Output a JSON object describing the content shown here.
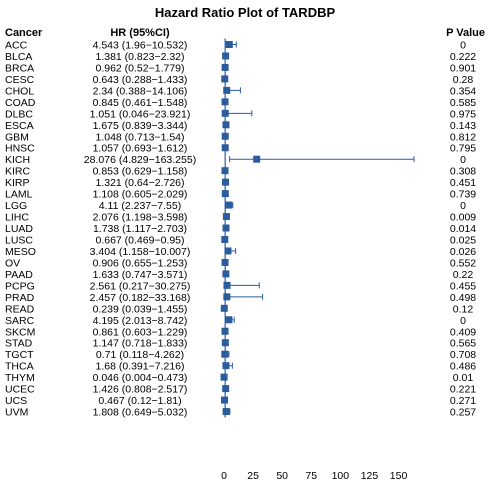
{
  "chart_data": {
    "type": "forest",
    "title": "Hazard Ratio Plot of TARDBP",
    "columns": {
      "cancer": "Cancer",
      "hr": "HR (95%CI)",
      "p": "P Value"
    },
    "colors": {
      "marker": "#2b5c9e",
      "line": "#2b5c9e",
      "reference": "#2b5c9e"
    },
    "x_ticks": [
      0,
      25,
      50,
      75,
      100,
      125,
      150
    ],
    "xlim": [
      0,
      165
    ],
    "rows": [
      {
        "cancer": "ACC",
        "hr_text": "4.543 (1.96−10.532)",
        "p": "0",
        "hr": 4.543,
        "lo": 1.96,
        "hi": 10.532
      },
      {
        "cancer": "BLCA",
        "hr_text": "1.381 (0.823−2.32)",
        "p": "0.222",
        "hr": 1.381,
        "lo": 0.823,
        "hi": 2.32
      },
      {
        "cancer": "BRCA",
        "hr_text": "0.962 (0.52−1.779)",
        "p": "0.901",
        "hr": 0.962,
        "lo": 0.52,
        "hi": 1.779
      },
      {
        "cancer": "CESC",
        "hr_text": "0.643 (0.288−1.433)",
        "p": "0.28",
        "hr": 0.643,
        "lo": 0.288,
        "hi": 1.433
      },
      {
        "cancer": "CHOL",
        "hr_text": "2.34 (0.388−14.106)",
        "p": "0.354",
        "hr": 2.34,
        "lo": 0.388,
        "hi": 14.106
      },
      {
        "cancer": "COAD",
        "hr_text": "0.845 (0.461−1.548)",
        "p": "0.585",
        "hr": 0.845,
        "lo": 0.461,
        "hi": 1.548
      },
      {
        "cancer": "DLBC",
        "hr_text": "1.051 (0.046−23.921)",
        "p": "0.975",
        "hr": 1.051,
        "lo": 0.046,
        "hi": 23.921
      },
      {
        "cancer": "ESCA",
        "hr_text": "1.675 (0.839−3.344)",
        "p": "0.143",
        "hr": 1.675,
        "lo": 0.839,
        "hi": 3.344
      },
      {
        "cancer": "GBM",
        "hr_text": "1.048 (0.713−1.54)",
        "p": "0.812",
        "hr": 1.048,
        "lo": 0.713,
        "hi": 1.54
      },
      {
        "cancer": "HNSC",
        "hr_text": "1.057 (0.693−1.612)",
        "p": "0.795",
        "hr": 1.057,
        "lo": 0.693,
        "hi": 1.612
      },
      {
        "cancer": "KICH",
        "hr_text": "28.076 (4.829−163.255)",
        "p": "0",
        "hr": 28.076,
        "lo": 4.829,
        "hi": 163.255
      },
      {
        "cancer": "KIRC",
        "hr_text": "0.853 (0.629−1.158)",
        "p": "0.308",
        "hr": 0.853,
        "lo": 0.629,
        "hi": 1.158
      },
      {
        "cancer": "KIRP",
        "hr_text": "1.321 (0.64−2.726)",
        "p": "0.451",
        "hr": 1.321,
        "lo": 0.64,
        "hi": 2.726
      },
      {
        "cancer": "LAML",
        "hr_text": "1.108 (0.605−2.029)",
        "p": "0.739",
        "hr": 1.108,
        "lo": 0.605,
        "hi": 2.029
      },
      {
        "cancer": "LGG",
        "hr_text": "4.11 (2.237−7.55)",
        "p": "0",
        "hr": 4.11,
        "lo": 2.237,
        "hi": 7.55
      },
      {
        "cancer": "LIHC",
        "hr_text": "2.076 (1.198−3.598)",
        "p": "0.009",
        "hr": 2.076,
        "lo": 1.198,
        "hi": 3.598
      },
      {
        "cancer": "LUAD",
        "hr_text": "1.738 (1.117−2.703)",
        "p": "0.014",
        "hr": 1.738,
        "lo": 1.117,
        "hi": 2.703
      },
      {
        "cancer": "LUSC",
        "hr_text": "0.667 (0.469−0.95)",
        "p": "0.025",
        "hr": 0.667,
        "lo": 0.469,
        "hi": 0.95
      },
      {
        "cancer": "MESO",
        "hr_text": "3.404 (1.158−10.007)",
        "p": "0.026",
        "hr": 3.404,
        "lo": 1.158,
        "hi": 10.007
      },
      {
        "cancer": "OV",
        "hr_text": "0.906 (0.655−1.253)",
        "p": "0.552",
        "hr": 0.906,
        "lo": 0.655,
        "hi": 1.253
      },
      {
        "cancer": "PAAD",
        "hr_text": "1.633 (0.747−3.571)",
        "p": "0.22",
        "hr": 1.633,
        "lo": 0.747,
        "hi": 3.571
      },
      {
        "cancer": "PCPG",
        "hr_text": "2.561 (0.217−30.275)",
        "p": "0.455",
        "hr": 2.561,
        "lo": 0.217,
        "hi": 30.275
      },
      {
        "cancer": "PRAD",
        "hr_text": "2.457 (0.182−33.168)",
        "p": "0.498",
        "hr": 2.457,
        "lo": 0.182,
        "hi": 33.168
      },
      {
        "cancer": "READ",
        "hr_text": "0.239 (0.039−1.455)",
        "p": "0.12",
        "hr": 0.239,
        "lo": 0.039,
        "hi": 1.455
      },
      {
        "cancer": "SARC",
        "hr_text": "4.195 (2.013−8.742)",
        "p": "0",
        "hr": 4.195,
        "lo": 2.013,
        "hi": 8.742
      },
      {
        "cancer": "SKCM",
        "hr_text": "0.861 (0.603−1.229)",
        "p": "0.409",
        "hr": 0.861,
        "lo": 0.603,
        "hi": 1.229
      },
      {
        "cancer": "STAD",
        "hr_text": "1.147 (0.718−1.833)",
        "p": "0.565",
        "hr": 1.147,
        "lo": 0.718,
        "hi": 1.833
      },
      {
        "cancer": "TGCT",
        "hr_text": "0.71 (0.118−4.262)",
        "p": "0.708",
        "hr": 0.71,
        "lo": 0.118,
        "hi": 4.262
      },
      {
        "cancer": "THCA",
        "hr_text": "1.68 (0.391−7.216)",
        "p": "0.486",
        "hr": 1.68,
        "lo": 0.391,
        "hi": 7.216
      },
      {
        "cancer": "THYM",
        "hr_text": "0.046 (0.004−0.473)",
        "p": "0.01",
        "hr": 0.046,
        "lo": 0.004,
        "hi": 0.473
      },
      {
        "cancer": "UCEC",
        "hr_text": "1.426 (0.808−2.517)",
        "p": "0.221",
        "hr": 1.426,
        "lo": 0.808,
        "hi": 2.517
      },
      {
        "cancer": "UCS",
        "hr_text": "0.467 (0.12−1.81)",
        "p": "0.271",
        "hr": 0.467,
        "lo": 0.12,
        "hi": 1.81
      },
      {
        "cancer": "UVM",
        "hr_text": "1.808 (0.649−5.032)",
        "p": "0.257",
        "hr": 1.808,
        "lo": 0.649,
        "hi": 5.032
      }
    ]
  }
}
